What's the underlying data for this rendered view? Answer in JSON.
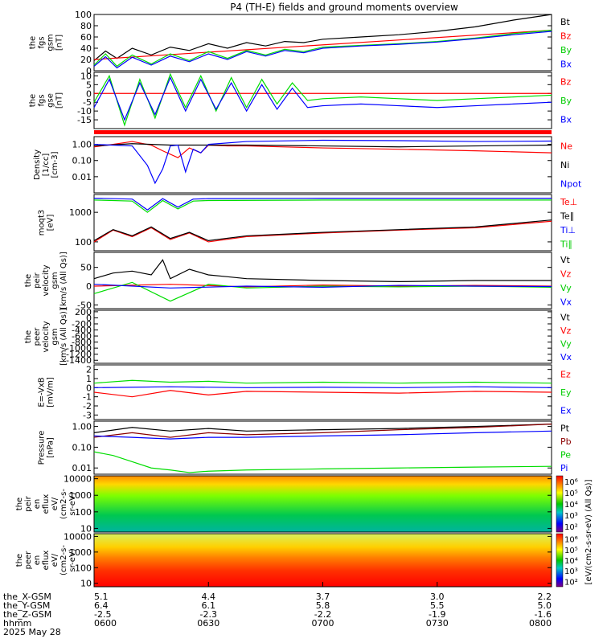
{
  "title": "P4 (TH-E) fields and ground moments overview",
  "colors": {
    "black": "#000000",
    "red": "#ff0000",
    "green": "#00dd00",
    "blue": "#0000ff",
    "brown": "#8b0000"
  },
  "chart_data": [
    {
      "type": "line",
      "id": "fgs-mag",
      "ylabel_lines": [
        "the",
        "fgs",
        "gsm",
        "[nT]"
      ],
      "ylim": [
        0,
        100
      ],
      "yticks": [
        "0",
        "20",
        "40",
        "60",
        "80",
        "100"
      ],
      "ytick_values": [
        0,
        20,
        40,
        60,
        80,
        100
      ],
      "series": [
        {
          "name": "Bt",
          "color": "#000000",
          "x": [
            0,
            3,
            6,
            10,
            15,
            20,
            25,
            30,
            35,
            40,
            45,
            50,
            55,
            60,
            70,
            80,
            90,
            100,
            110,
            120
          ],
          "y": [
            18,
            35,
            22,
            40,
            28,
            42,
            36,
            48,
            40,
            50,
            44,
            52,
            50,
            56,
            60,
            64,
            70,
            78,
            90,
            104
          ]
        },
        {
          "name": "Bz",
          "color": "#ff0000",
          "x": [
            0,
            120
          ],
          "y": [
            20,
            72
          ]
        },
        {
          "name": "By",
          "color": "#00dd00",
          "x": [
            0,
            3,
            6,
            10,
            15,
            20,
            25,
            30,
            35,
            40,
            45,
            50,
            55,
            60,
            70,
            80,
            90,
            100,
            110,
            120
          ],
          "y": [
            10,
            30,
            8,
            28,
            12,
            30,
            18,
            34,
            22,
            36,
            28,
            38,
            34,
            42,
            45,
            48,
            52,
            58,
            66,
            72
          ]
        },
        {
          "name": "Bx",
          "color": "#0000ff",
          "x": [
            0,
            3,
            6,
            10,
            15,
            20,
            25,
            30,
            35,
            40,
            45,
            50,
            55,
            60,
            70,
            80,
            90,
            100,
            110,
            120
          ],
          "y": [
            8,
            25,
            5,
            24,
            10,
            26,
            16,
            30,
            20,
            34,
            26,
            36,
            32,
            40,
            44,
            47,
            51,
            57,
            64,
            70
          ]
        }
      ]
    },
    {
      "type": "line",
      "id": "fgs-gse",
      "ylabel_lines": [
        "the",
        "fgs",
        "gse",
        "[nT]"
      ],
      "ylim": [
        -20,
        12
      ],
      "yticks": [
        "-15",
        "-10",
        "-5",
        "0",
        "5",
        "10"
      ],
      "ytick_values": [
        -15,
        -10,
        -5,
        0,
        5,
        10
      ],
      "series": [
        {
          "name": "Bz",
          "color": "#ff0000",
          "x": [
            0,
            120
          ],
          "y": [
            0,
            0
          ]
        },
        {
          "name": "By",
          "color": "#00dd00",
          "x": [
            0,
            4,
            8,
            12,
            16,
            20,
            24,
            28,
            32,
            36,
            40,
            44,
            48,
            52,
            56,
            60,
            70,
            80,
            90,
            100,
            110,
            120
          ],
          "y": [
            -5,
            10,
            -18,
            8,
            -14,
            11,
            -8,
            10,
            -10,
            9,
            -8,
            8,
            -6,
            6,
            -4,
            -3,
            -2,
            -3,
            -4,
            -3,
            -2,
            -1
          ]
        },
        {
          "name": "Bx",
          "color": "#0000ff",
          "x": [
            0,
            4,
            8,
            12,
            16,
            20,
            24,
            28,
            32,
            36,
            40,
            44,
            48,
            52,
            56,
            60,
            70,
            80,
            90,
            100,
            110,
            120
          ],
          "y": [
            -8,
            8,
            -15,
            6,
            -12,
            9,
            -10,
            8,
            -9,
            6,
            -10,
            5,
            -9,
            3,
            -8,
            -7,
            -6,
            -7,
            -8,
            -7,
            -6,
            -5
          ]
        }
      ]
    },
    {
      "type": "line",
      "id": "density",
      "ylabel_lines": [
        "Density",
        "[1/cc]",
        "[cm-3]"
      ],
      "yscale": "log",
      "ylim": [
        0.001,
        3
      ],
      "yticks": [
        "0.01",
        "0.10",
        "1.00"
      ],
      "ytick_values": [
        0.01,
        0.1,
        1
      ],
      "series": [
        {
          "name": "Ne",
          "color": "#ff0000",
          "x": [
            0,
            5,
            10,
            15,
            18,
            22,
            25,
            28,
            30,
            35,
            40,
            60,
            80,
            100,
            120
          ],
          "y": [
            0.7,
            1.0,
            1.5,
            0.9,
            0.4,
            0.15,
            0.6,
            0.3,
            0.9,
            0.8,
            0.8,
            0.6,
            0.5,
            0.4,
            0.3
          ]
        },
        {
          "name": "Ni",
          "color": "#000000",
          "x": [
            0,
            10,
            20,
            40,
            60,
            80,
            100,
            120
          ],
          "y": [
            0.8,
            1.1,
            0.9,
            0.9,
            0.8,
            0.7,
            0.8,
            0.9
          ]
        },
        {
          "name": "Npot",
          "color": "#0000ff",
          "x": [
            0,
            10,
            14,
            16,
            18,
            20,
            22,
            24,
            26,
            28,
            30,
            40,
            60,
            80,
            100,
            120
          ],
          "y": [
            1.0,
            0.8,
            0.05,
            0.004,
            0.03,
            0.8,
            0.9,
            0.02,
            0.5,
            0.3,
            1.0,
            1.5,
            1.8,
            1.7,
            1.5,
            1.6
          ]
        }
      ]
    },
    {
      "type": "line",
      "id": "temperature",
      "ylabel_lines": [
        "moqt3",
        "[eV]"
      ],
      "yscale": "log",
      "ylim": [
        50,
        4000
      ],
      "yticks": [
        "100",
        "1000"
      ],
      "ytick_values": [
        100,
        1000
      ],
      "series": [
        {
          "name": "Te⊥",
          "color": "#ff0000",
          "x": [
            0,
            5,
            10,
            15,
            20,
            25,
            30,
            40,
            60,
            80,
            100,
            120
          ],
          "y": [
            100,
            250,
            150,
            300,
            120,
            200,
            100,
            150,
            200,
            250,
            300,
            500
          ]
        },
        {
          "name": "Te∥",
          "color": "#000000",
          "x": [
            0,
            5,
            10,
            15,
            20,
            25,
            30,
            40,
            60,
            80,
            100,
            120
          ],
          "y": [
            110,
            260,
            160,
            320,
            130,
            210,
            110,
            160,
            210,
            260,
            320,
            550
          ]
        },
        {
          "name": "Ti⊥",
          "color": "#0000ff",
          "x": [
            0,
            10,
            14,
            18,
            22,
            26,
            30,
            60,
            90,
            120
          ],
          "y": [
            3000,
            2800,
            1200,
            2900,
            1500,
            2800,
            2900,
            3000,
            3000,
            3000
          ]
        },
        {
          "name": "Ti∥",
          "color": "#00dd00",
          "x": [
            0,
            10,
            14,
            18,
            22,
            26,
            30,
            60,
            90,
            120
          ],
          "y": [
            2600,
            2400,
            1000,
            2500,
            1300,
            2400,
            2500,
            2600,
            2600,
            2600
          ]
        }
      ]
    },
    {
      "type": "line",
      "id": "peir-velocity",
      "ylabel_lines": [
        "the",
        "peir",
        "velocity",
        "gsm",
        "[km/s (All Qs)]"
      ],
      "ylim": [
        -60,
        90
      ],
      "yticks": [
        "-50",
        "0",
        "50"
      ],
      "ytick_values": [
        -50,
        0,
        50
      ],
      "series": [
        {
          "name": "Vt",
          "color": "#000000",
          "x": [
            0,
            5,
            10,
            15,
            18,
            20,
            25,
            30,
            35,
            40,
            60,
            80,
            100,
            120
          ],
          "y": [
            20,
            35,
            40,
            30,
            70,
            20,
            45,
            30,
            25,
            20,
            15,
            12,
            15,
            15
          ]
        },
        {
          "name": "Vz",
          "color": "#ff0000",
          "x": [
            0,
            20,
            40,
            60,
            80,
            100,
            120
          ],
          "y": [
            0,
            5,
            -2,
            3,
            0,
            2,
            0
          ]
        },
        {
          "name": "Vy",
          "color": "#00dd00",
          "x": [
            0,
            10,
            20,
            30,
            40,
            60,
            80,
            100,
            120
          ],
          "y": [
            -20,
            10,
            -40,
            5,
            -5,
            0,
            -2,
            0,
            -3
          ]
        },
        {
          "name": "Vx",
          "color": "#0000ff",
          "x": [
            0,
            20,
            40,
            60,
            80,
            100,
            120
          ],
          "y": [
            5,
            -5,
            0,
            -3,
            2,
            0,
            -1
          ]
        }
      ]
    },
    {
      "type": "line",
      "id": "peer-velocity",
      "ylabel_lines": [
        "the",
        "peer",
        "velocity",
        "gsm",
        "[km/s (All Qs)]"
      ],
      "ylim": [
        -1500,
        250
      ],
      "yticks": [
        "-1400",
        "-1200",
        "-1000",
        "-800",
        "-600",
        "-400",
        "-200",
        "0",
        "200"
      ],
      "ytick_values": [
        -1400,
        -1200,
        -1000,
        -800,
        -600,
        -400,
        -200,
        0,
        200
      ],
      "series": [
        {
          "name": "Vt",
          "color": "#000000",
          "x": [],
          "y": []
        },
        {
          "name": "Vz",
          "color": "#ff0000",
          "x": [],
          "y": []
        },
        {
          "name": "Vy",
          "color": "#00dd00",
          "x": [],
          "y": []
        },
        {
          "name": "Vx",
          "color": "#0000ff",
          "x": [],
          "y": []
        }
      ]
    },
    {
      "type": "line",
      "id": "efield",
      "ylabel_lines": [
        "E=-VxB",
        "[mV/m]"
      ],
      "ylim": [
        -3.5,
        2.5
      ],
      "yticks": [
        "-3",
        "-2",
        "-1",
        "0",
        "1",
        "2"
      ],
      "ytick_values": [
        -3,
        -2,
        -1,
        0,
        1,
        2
      ],
      "series": [
        {
          "name": "Ez",
          "color": "#ff0000",
          "x": [
            0,
            10,
            20,
            30,
            40,
            60,
            80,
            100,
            120
          ],
          "y": [
            -0.5,
            -1,
            -0.3,
            -0.8,
            -0.4,
            -0.5,
            -0.6,
            -0.4,
            -0.5
          ]
        },
        {
          "name": "Ey",
          "color": "#00dd00",
          "x": [
            0,
            10,
            20,
            30,
            40,
            60,
            80,
            100,
            120
          ],
          "y": [
            0.5,
            0.8,
            0.6,
            0.7,
            0.5,
            0.6,
            0.5,
            0.6,
            0.5
          ]
        },
        {
          "name": "Ex",
          "color": "#0000ff",
          "x": [
            0,
            20,
            40,
            60,
            80,
            100,
            120
          ],
          "y": [
            0,
            0.1,
            0,
            0.05,
            0,
            0.1,
            0
          ]
        }
      ]
    },
    {
      "type": "line",
      "id": "pressure",
      "ylabel_lines": [
        "Pressure",
        "[nPa]"
      ],
      "yscale": "log",
      "ylim": [
        0.005,
        1.8
      ],
      "yticks": [
        "0.01",
        "0.10",
        "1.00"
      ],
      "ytick_values": [
        0.01,
        0.1,
        1
      ],
      "series": [
        {
          "name": "Pt",
          "color": "#000000",
          "x": [
            0,
            10,
            20,
            30,
            40,
            60,
            80,
            100,
            120
          ],
          "y": [
            0.5,
            0.9,
            0.6,
            0.8,
            0.6,
            0.7,
            0.8,
            1.0,
            1.3
          ]
        },
        {
          "name": "Pb",
          "color": "#8b0000",
          "x": [
            0,
            10,
            20,
            30,
            40,
            60,
            80,
            100,
            120
          ],
          "y": [
            0.3,
            0.5,
            0.3,
            0.5,
            0.4,
            0.5,
            0.7,
            0.9,
            1.3
          ]
        },
        {
          "name": "Pe",
          "color": "#0000ff",
          "x": [
            0,
            10,
            20,
            30,
            40,
            60,
            80,
            100,
            120
          ],
          "y": [
            0.35,
            0.3,
            0.25,
            0.3,
            0.3,
            0.35,
            0.4,
            0.5,
            0.6
          ]
        },
        {
          "name": "Pi",
          "color": "#00dd00",
          "x": [
            0,
            5,
            10,
            15,
            20,
            25,
            30,
            40,
            60,
            80,
            100,
            120
          ],
          "y": [
            0.06,
            0.04,
            0.02,
            0.01,
            0.008,
            0.006,
            0.007,
            0.008,
            0.009,
            0.01,
            0.011,
            0.012
          ]
        }
      ]
    },
    {
      "type": "heatmap",
      "id": "peir-eflux",
      "ylabel_lines": [
        "the",
        "peir",
        "en",
        "eflux",
        "eV/",
        "(cm2-s-",
        "sr-eV)"
      ],
      "yscale": "log",
      "ylim": [
        6,
        15000
      ],
      "yticks": [
        "10",
        "100",
        "1000",
        "10000"
      ],
      "ytick_values": [
        10,
        100,
        1000,
        10000
      ],
      "colorbar_label": "[eV/(cm2-s-sr-eV) (All Qs)]",
      "colorbar_ticks": [
        "10²",
        "10³",
        "10⁴",
        "10⁵",
        "10⁶"
      ]
    },
    {
      "type": "heatmap",
      "id": "peer-eflux",
      "ylabel_lines": [
        "the",
        "peer",
        "en",
        "eflux",
        "eV/",
        "(cm2-s-",
        "sr-eV)"
      ],
      "yscale": "log",
      "ylim": [
        6,
        15000
      ],
      "yticks": [
        "10",
        "100",
        "1000",
        "10000"
      ],
      "ytick_values": [
        10,
        100,
        1000,
        10000
      ],
      "colorbar_label": "[eV/(cm2-s-sr-eV) (All Qs)]",
      "colorbar_ticks": [
        "10²",
        "10³",
        "10⁴",
        "10⁵",
        "10⁶"
      ]
    }
  ],
  "legends": [
    [
      "Bt",
      "Bz",
      "By",
      "Bx"
    ],
    [
      "Bz",
      "By",
      "Bx"
    ],
    [
      "Ne",
      "Ni",
      "Npot"
    ],
    [
      "Te⊥",
      "Te∥",
      "Ti⊥",
      "Ti∥"
    ],
    [
      "Vt",
      "Vz",
      "Vy",
      "Vx"
    ],
    [
      "Vt",
      "Vz",
      "Vy",
      "Vx"
    ],
    [
      "Ez",
      "Ey",
      "Ex"
    ],
    [
      "Pt",
      "Pb",
      "Pe",
      "Pi"
    ]
  ],
  "xaxis": {
    "row_labels": [
      "the_X-GSM",
      "the_Y-GSM",
      "the_Z-GSM",
      "hhmm",
      "2025 May 28"
    ],
    "columns": [
      [
        "5.1",
        "6.4",
        "-2.5",
        "0600"
      ],
      [
        "4.4",
        "6.1",
        "-2.3",
        "0630"
      ],
      [
        "3.7",
        "5.8",
        "-2.2",
        "0700"
      ],
      [
        "3.0",
        "5.5",
        "-1.9",
        "0730"
      ],
      [
        "2.2",
        "5.0",
        "-1.6",
        "0800"
      ]
    ],
    "tick_minutes": [
      0,
      30,
      60,
      90,
      120
    ]
  }
}
